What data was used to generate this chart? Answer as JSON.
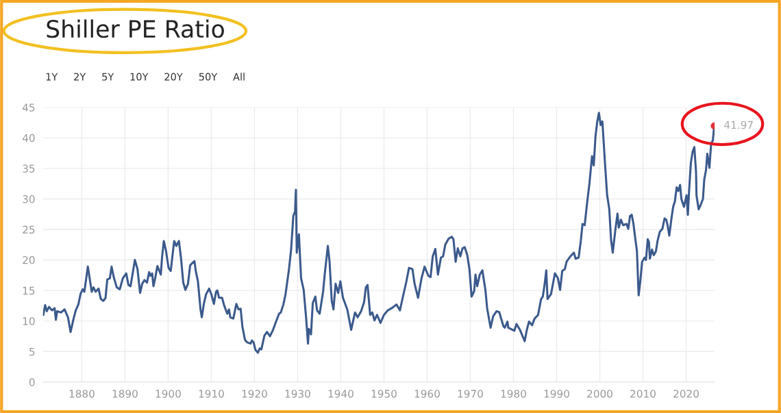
{
  "chart_data": {
    "type": "line",
    "title": "Shiller PE Ratio",
    "annotations": [
      "1Y",
      "2Y",
      "5Y",
      "10Y",
      "20Y",
      "50Y",
      "All",
      {
        "text": "41.97",
        "x": 2026.5,
        "y": 41.97
      }
    ],
    "xlim": [
      1871,
      2026.6
    ],
    "xticks": [
      1880,
      1890,
      1900,
      1910,
      1920,
      1930,
      1940,
      1950,
      1960,
      1970,
      1980,
      1990,
      2000,
      2010,
      2020
    ],
    "ylim": [
      0,
      45
    ],
    "yticks": [
      0,
      5,
      10,
      15,
      20,
      25,
      30,
      35,
      40,
      45
    ],
    "grid": true,
    "marker": "none",
    "line_style": "solid",
    "series": [
      {
        "color": "#3b5a8c",
        "x": [
          1871.1,
          1871.5,
          1871.9,
          1872.4,
          1873.1,
          1873.7,
          1874.0,
          1874.3,
          1875.2,
          1876.0,
          1876.8,
          1877.4,
          1878.1,
          1878.6,
          1879.2,
          1879.7,
          1880.2,
          1880.6,
          1881.4,
          1882.3,
          1882.7,
          1883.2,
          1883.9,
          1884.4,
          1885.0,
          1885.5,
          1885.9,
          1886.5,
          1886.9,
          1887.4,
          1888.1,
          1888.8,
          1889.5,
          1890.3,
          1890.8,
          1891.3,
          1892.3,
          1892.9,
          1893.5,
          1894.0,
          1894.5,
          1895.1,
          1895.6,
          1895.9,
          1896.3,
          1896.6,
          1897.0,
          1897.5,
          1897.8,
          1898.3,
          1898.6,
          1899.0,
          1899.5,
          1900.1,
          1900.6,
          1901.4,
          1901.9,
          1902.5,
          1903.0,
          1903.5,
          1904.0,
          1904.6,
          1905.1,
          1905.6,
          1906.1,
          1906.4,
          1906.9,
          1907.5,
          1907.8,
          1908.3,
          1908.8,
          1909.5,
          1910.0,
          1910.6,
          1911.1,
          1911.4,
          1911.8,
          1912.5,
          1913.0,
          1913.7,
          1914.1,
          1914.4,
          1915.1,
          1915.8,
          1916.3,
          1916.8,
          1917.2,
          1917.8,
          1918.3,
          1919.1,
          1919.4,
          1919.8,
          1920.2,
          1920.8,
          1921.2,
          1921.6,
          1922.3,
          1922.9,
          1923.6,
          1924.3,
          1924.9,
          1925.7,
          1926.1,
          1926.7,
          1927.2,
          1928.0,
          1928.5,
          1929.0,
          1929.4,
          1929.6,
          1929.8,
          1930.3,
          1930.8,
          1931.4,
          1932.0,
          1932.4,
          1932.6,
          1933.1,
          1933.5,
          1934.1,
          1934.5,
          1935.1,
          1935.9,
          1936.3,
          1937.0,
          1937.4,
          1937.9,
          1938.3,
          1938.8,
          1939.4,
          1939.9,
          1940.5,
          1941.5,
          1942.4,
          1943.3,
          1943.9,
          1944.7,
          1945.4,
          1945.8,
          1946.2,
          1946.8,
          1947.3,
          1947.8,
          1948.4,
          1949.2,
          1950.0,
          1950.9,
          1951.8,
          1952.9,
          1953.7,
          1954.4,
          1955.2,
          1955.8,
          1956.6,
          1957.1,
          1957.9,
          1958.7,
          1959.4,
          1960.3,
          1960.8,
          1961.3,
          1961.9,
          1962.5,
          1963.2,
          1963.7,
          1964.2,
          1965.0,
          1965.7,
          1966.1,
          1966.6,
          1967.1,
          1967.7,
          1968.2,
          1968.7,
          1969.3,
          1969.8,
          1970.3,
          1970.9,
          1971.2,
          1971.6,
          1972.2,
          1972.8,
          1973.5,
          1973.9,
          1974.7,
          1975.3,
          1976.1,
          1976.7,
          1977.7,
          1978.0,
          1978.6,
          1978.8,
          1980.2,
          1980.7,
          1981.5,
          1982.6,
          1983.1,
          1983.6,
          1984.3,
          1984.9,
          1985.7,
          1986.4,
          1986.8,
          1987.2,
          1987.6,
          1987.9,
          1988.7,
          1989.6,
          1990.3,
          1990.8,
          1991.3,
          1991.9,
          1992.3,
          1993.2,
          1994.0,
          1994.4,
          1995.1,
          1995.6,
          1996.0,
          1996.5,
          1997.1,
          1997.6,
          1998.2,
          1998.6,
          1999.0,
          1999.4,
          1999.8,
          2000.2,
          2000.6,
          2001.2,
          2001.7,
          2002.2,
          2002.6,
          2003.0,
          2003.6,
          2004.1,
          2004.4,
          2004.9,
          2005.4,
          2006.2,
          2006.6,
          2007.0,
          2007.4,
          2007.8,
          2008.2,
          2008.6,
          2009.0,
          2009.4,
          2009.8,
          2010.4,
          2010.7,
          2011.1,
          2011.4,
          2011.6,
          2012.1,
          2012.5,
          2013.0,
          2013.4,
          2013.9,
          2014.5,
          2015.0,
          2015.4,
          2015.7,
          2016.1,
          2016.6,
          2017.0,
          2017.4,
          2017.8,
          2018.2,
          2018.6,
          2018.9,
          2019.5,
          2020.1,
          2020.4,
          2020.7,
          2021.1,
          2021.5,
          2021.9,
          2022.3,
          2022.4,
          2022.9,
          2023.3,
          2023.9,
          2024.2,
          2024.6,
          2024.9,
          2025.4,
          2025.8,
          2026.2,
          2026.5
        ],
        "values": [
          11.0,
          12.6,
          11.6,
          12.3,
          11.75,
          12.1,
          10.2,
          11.6,
          11.4,
          11.9,
          10.6,
          8.2,
          10.4,
          11.75,
          12.7,
          14.4,
          15.2,
          14.8,
          18.9,
          14.8,
          15.5,
          14.8,
          15.3,
          13.6,
          13.3,
          13.8,
          16.8,
          17.0,
          18.9,
          17.2,
          15.5,
          15.2,
          17.0,
          17.8,
          15.9,
          15.7,
          20.0,
          18.5,
          14.6,
          16.1,
          16.7,
          16.3,
          18.0,
          17.4,
          17.8,
          15.7,
          17.0,
          19.0,
          18.5,
          17.6,
          20.5,
          23.1,
          21.5,
          18.7,
          18.2,
          23.1,
          22.3,
          23.1,
          20.2,
          16.3,
          15.1,
          16.1,
          19.1,
          19.5,
          19.8,
          18.2,
          16.5,
          11.9,
          10.6,
          12.9,
          14.4,
          15.3,
          14.4,
          12.8,
          14.8,
          15.0,
          13.8,
          13.8,
          12.5,
          11.2,
          11.9,
          10.6,
          10.4,
          12.8,
          11.9,
          12.0,
          9.1,
          6.9,
          6.5,
          6.3,
          6.8,
          6.5,
          5.3,
          4.8,
          5.5,
          5.35,
          7.6,
          8.2,
          7.5,
          8.55,
          9.7,
          11.2,
          11.4,
          12.7,
          14.4,
          18.5,
          21.8,
          27.2,
          27.9,
          31.5,
          21.2,
          24.2,
          17.0,
          15.1,
          10.2,
          6.3,
          8.7,
          7.8,
          12.9,
          14.0,
          11.75,
          11.2,
          14.8,
          17.8,
          22.3,
          19.7,
          13.3,
          11.9,
          16.1,
          14.6,
          16.5,
          13.8,
          11.9,
          8.55,
          11.4,
          10.6,
          11.6,
          13.1,
          15.5,
          15.9,
          11.0,
          11.4,
          10.1,
          11.0,
          9.7,
          11.0,
          11.75,
          12.1,
          12.7,
          11.75,
          14.0,
          16.5,
          18.7,
          18.5,
          16.1,
          13.8,
          17.0,
          18.9,
          17.4,
          17.2,
          20.6,
          21.8,
          17.6,
          20.4,
          20.6,
          22.5,
          23.5,
          23.8,
          23.4,
          19.7,
          21.9,
          20.6,
          21.9,
          22.1,
          20.8,
          18.5,
          14.0,
          14.9,
          17.6,
          15.7,
          17.6,
          18.3,
          15.1,
          12.1,
          8.9,
          10.8,
          11.6,
          11.45,
          9.1,
          8.9,
          9.9,
          8.9,
          8.4,
          9.5,
          8.55,
          6.7,
          8.55,
          9.9,
          9.3,
          10.4,
          11.0,
          13.6,
          14.0,
          15.9,
          18.3,
          13.6,
          14.4,
          17.8,
          17.0,
          15.1,
          18.2,
          18.5,
          19.7,
          20.6,
          21.2,
          20.2,
          20.4,
          23.1,
          25.9,
          25.7,
          29.6,
          32.5,
          37.0,
          35.5,
          40.2,
          42.6,
          44.1,
          42.1,
          42.7,
          35.9,
          30.6,
          28.3,
          23.4,
          21.2,
          24.9,
          27.6,
          25.3,
          26.6,
          25.7,
          25.9,
          25.1,
          27.2,
          27.4,
          25.9,
          23.6,
          21.5,
          14.2,
          16.6,
          19.7,
          20.4,
          20.0,
          23.4,
          22.9,
          20.2,
          21.7,
          20.8,
          21.4,
          23.2,
          24.6,
          25.1,
          26.8,
          26.6,
          25.7,
          24.0,
          26.8,
          28.7,
          29.6,
          31.9,
          31.3,
          32.3,
          30.0,
          28.7,
          30.6,
          27.4,
          31.5,
          35.9,
          37.7,
          38.5,
          34.4,
          30.6,
          28.3,
          28.9,
          30.0,
          33.2,
          34.7,
          37.4,
          35.1,
          39.1,
          39.6,
          41.97
        ]
      },
      {
        "type": "scatter",
        "color": "#e0333d",
        "marker": "circle",
        "x": [
          2026.5
        ],
        "values": [
          41.97
        ]
      }
    ]
  }
}
